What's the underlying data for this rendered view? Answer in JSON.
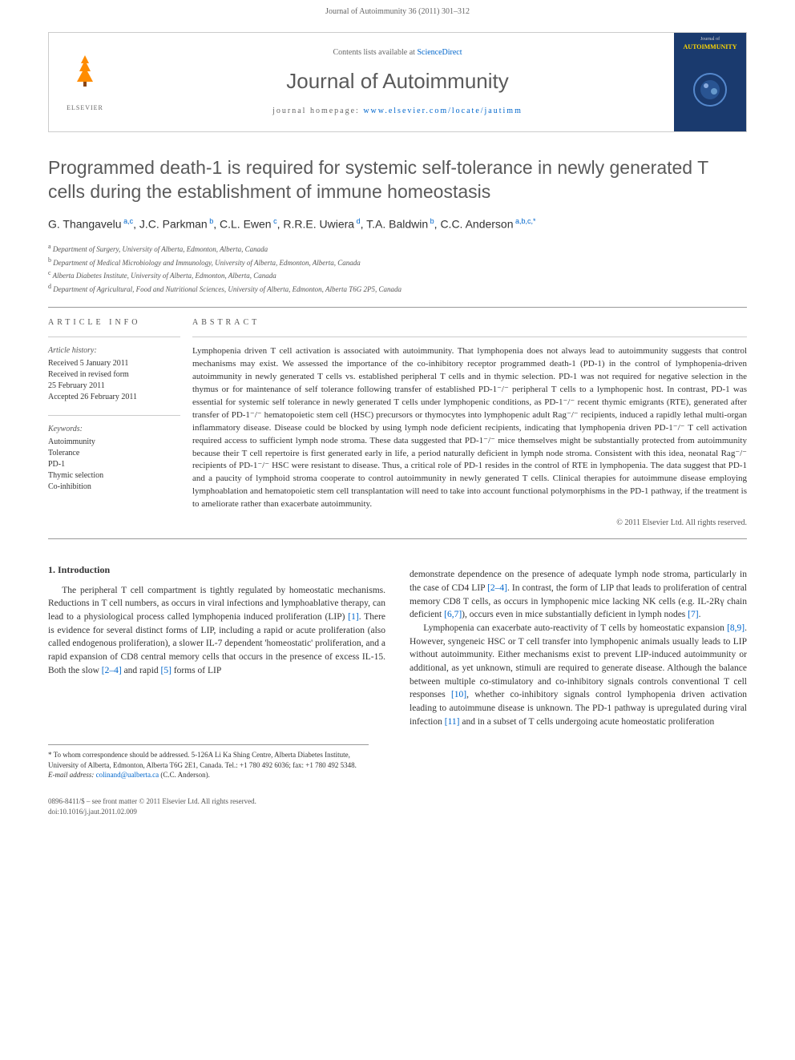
{
  "page_header": "Journal of Autoimmunity 36 (2011) 301–312",
  "header_box": {
    "contents_prefix": "Contents lists available at ",
    "contents_link": "ScienceDirect",
    "journal_name": "Journal of Autoimmunity",
    "homepage_prefix": "journal homepage: ",
    "homepage_url": "www.elsevier.com/locate/jautimm",
    "elsevier_label": "ELSEVIER",
    "cover_label_top": "Journal of",
    "cover_label_bottom": "AUTOIMMUNITY"
  },
  "title": "Programmed death-1 is required for systemic self-tolerance in newly generated T cells during the establishment of immune homeostasis",
  "authors_html": "G. Thangavelu<sup> a,c</sup>, J.C. Parkman<sup> b</sup>, C.L. Ewen<sup> c</sup>, R.R.E. Uwiera<sup> d</sup>, T.A. Baldwin<sup> b</sup>, C.C. Anderson<sup> a,b,c,*</sup>",
  "affiliations": [
    "a Department of Surgery, University of Alberta, Edmonton, Alberta, Canada",
    "b Department of Medical Microbiology and Immunology, University of Alberta, Edmonton, Alberta, Canada",
    "c Alberta Diabetes Institute, University of Alberta, Edmonton, Alberta, Canada",
    "d Department of Agricultural, Food and Nutritional Sciences, University of Alberta, Edmonton, Alberta T6G 2P5, Canada"
  ],
  "article_info": {
    "heading": "ARTICLE INFO",
    "history_label": "Article history:",
    "received": "Received 5 January 2011",
    "revised_1": "Received in revised form",
    "revised_2": "25 February 2011",
    "accepted": "Accepted 26 February 2011",
    "keywords_label": "Keywords:",
    "keywords": [
      "Autoimmunity",
      "Tolerance",
      "PD-1",
      "Thymic selection",
      "Co-inhibition"
    ]
  },
  "abstract": {
    "heading": "ABSTRACT",
    "text": "Lymphopenia driven T cell activation is associated with autoimmunity. That lymphopenia does not always lead to autoimmunity suggests that control mechanisms may exist. We assessed the importance of the co-inhibitory receptor programmed death-1 (PD-1) in the control of lymphopenia-driven autoimmunity in newly generated T cells vs. established peripheral T cells and in thymic selection. PD-1 was not required for negative selection in the thymus or for maintenance of self tolerance following transfer of established PD-1⁻/⁻ peripheral T cells to a lymphopenic host. In contrast, PD-1 was essential for systemic self tolerance in newly generated T cells under lymphopenic conditions, as PD-1⁻/⁻ recent thymic emigrants (RTE), generated after transfer of PD-1⁻/⁻ hematopoietic stem cell (HSC) precursors or thymocytes into lymphopenic adult Rag⁻/⁻ recipients, induced a rapidly lethal multi-organ inflammatory disease. Disease could be blocked by using lymph node deficient recipients, indicating that lymphopenia driven PD-1⁻/⁻ T cell activation required access to sufficient lymph node stroma. These data suggested that PD-1⁻/⁻ mice themselves might be substantially protected from autoimmunity because their T cell repertoire is first generated early in life, a period naturally deficient in lymph node stroma. Consistent with this idea, neonatal Rag⁻/⁻ recipients of PD-1⁻/⁻ HSC were resistant to disease. Thus, a critical role of PD-1 resides in the control of RTE in lymphopenia. The data suggest that PD-1 and a paucity of lymphoid stroma cooperate to control autoimmunity in newly generated T cells. Clinical therapies for autoimmune disease employing lymphoablation and hematopoietic stem cell transplantation will need to take into account functional polymorphisms in the PD-1 pathway, if the treatment is to ameliorate rather than exacerbate autoimmunity.",
    "copyright": "© 2011 Elsevier Ltd. All rights reserved."
  },
  "introduction": {
    "heading": "1. Introduction",
    "col1_p1": "The peripheral T cell compartment is tightly regulated by homeostatic mechanisms. Reductions in T cell numbers, as occurs in viral infections and lymphoablative therapy, can lead to a physiological process called lymphopenia induced proliferation (LIP) [1]. There is evidence for several distinct forms of LIP, including a rapid or acute proliferation (also called endogenous proliferation), a slower IL-7 dependent 'homeostatic' proliferation, and a rapid expansion of CD8 central memory cells that occurs in the presence of excess IL-15. Both the slow [2–4] and rapid [5] forms of LIP",
    "col2_p1": "demonstrate dependence on the presence of adequate lymph node stroma, particularly in the case of CD4 LIP [2–4]. In contrast, the form of LIP that leads to proliferation of central memory CD8 T cells, as occurs in lymphopenic mice lacking NK cells (e.g. IL-2Rγ chain deficient [6,7]), occurs even in mice substantially deficient in lymph nodes [7].",
    "col2_p2": "Lymphopenia can exacerbate auto-reactivity of T cells by homeostatic expansion [8,9]. However, syngeneic HSC or T cell transfer into lymphopenic animals usually leads to LIP without autoimmunity. Either mechanisms exist to prevent LIP-induced autoimmunity or additional, as yet unknown, stimuli are required to generate disease. Although the balance between multiple co-stimulatory and co-inhibitory signals controls conventional T cell responses [10], whether co-inhibitory signals control lymphopenia driven activation leading to autoimmune disease is unknown. The PD-1 pathway is upregulated during viral infection [11] and in a subset of T cells undergoing acute homeostatic proliferation"
  },
  "footer": {
    "corr": "* To whom correspondence should be addressed. 5-126A Li Ka Shing Centre, Alberta Diabetes Institute, University of Alberta, Edmonton, Alberta T6G 2E1, Canada. Tel.: +1 780 492 6036; fax: +1 780 492 5348.",
    "email_label": "E-mail address: ",
    "email": "colinand@ualberta.ca",
    "email_name": " (C.C. Anderson).",
    "issn": "0896-8411/$ – see front matter © 2011 Elsevier Ltd. All rights reserved.",
    "doi": "doi:10.1016/j.jaut.2011.02.009"
  },
  "colors": {
    "link": "#0066cc",
    "text": "#333333",
    "heading_gray": "#5a5a5a",
    "border": "#cccccc",
    "elsevier_orange": "#ff8c00",
    "cover_bg": "#1a3a6e",
    "cover_gold": "#ffd700"
  },
  "ref_links": {
    "r1": "[1]",
    "r2_4a": "[2–4]",
    "r5": "[5]",
    "r2_4b": "[2–4]",
    "r6_7": "[6,7]",
    "r7": "[7]",
    "r8_9": "[8,9]",
    "r10": "[10]",
    "r11": "[11]"
  }
}
